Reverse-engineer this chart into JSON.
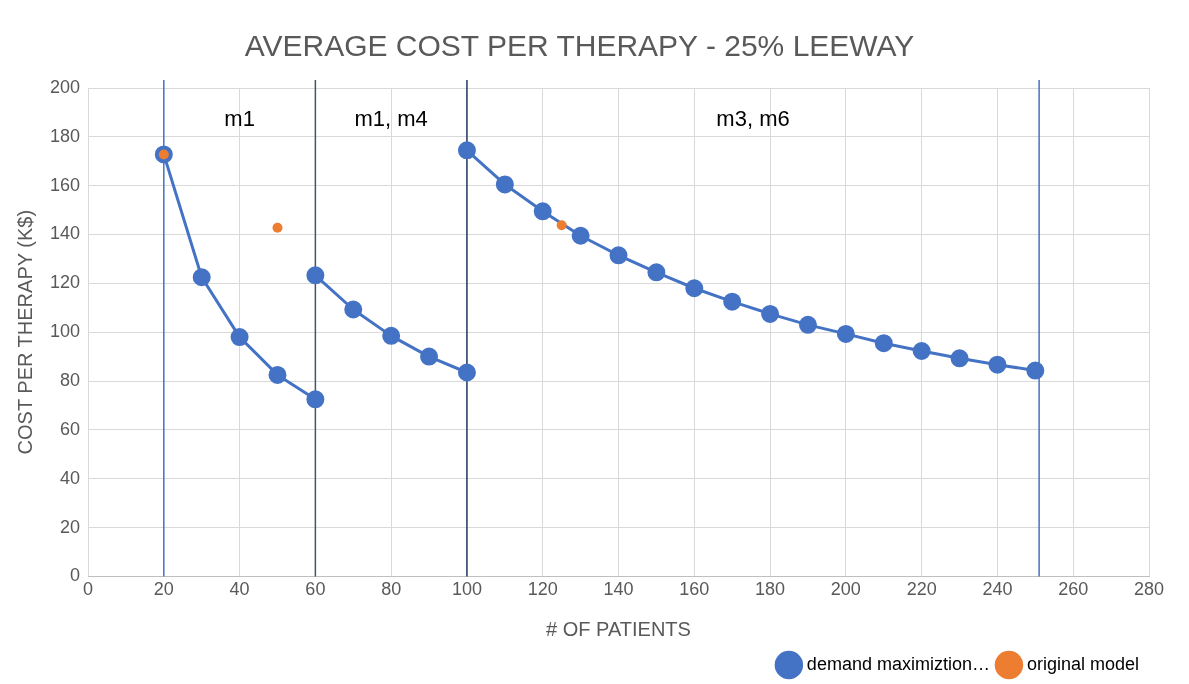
{
  "chart_data": {
    "type": "line",
    "title": "AVERAGE COST PER THERAPY - 25% LEEWAY",
    "xlabel": "# OF PATIENTS",
    "ylabel": "COST PER THERAPY (K$)",
    "xlim": [
      0,
      280
    ],
    "xticks": [
      0,
      20,
      40,
      60,
      80,
      100,
      120,
      140,
      160,
      180,
      200,
      220,
      240,
      260,
      280
    ],
    "ylim": [
      0,
      200
    ],
    "yticks": [
      0,
      20,
      40,
      60,
      80,
      100,
      120,
      140,
      160,
      180,
      200
    ],
    "grid": true,
    "legend": "bottom right",
    "marker": "circle",
    "line_style": "solid",
    "series": [
      {
        "name": "demand maximiztion…",
        "color": "#4472c4",
        "x": [
          20,
          30,
          40,
          50,
          60
        ],
        "values": [
          172.8,
          122.5,
          98,
          82.5,
          72.5
        ]
      },
      {
        "color": "#4472c4",
        "x": [
          60,
          70,
          80,
          90,
          100
        ],
        "values": [
          123.3,
          109.3,
          98.5,
          90,
          83.5
        ]
      },
      {
        "color": "#4472c4",
        "x": [
          100,
          110,
          120,
          130,
          140,
          150,
          160,
          170,
          180,
          190,
          200,
          210,
          220,
          230,
          240,
          250
        ],
        "values": [
          174.5,
          160.5,
          149.5,
          139.5,
          131.5,
          124.5,
          118,
          112.5,
          107.5,
          103,
          99.3,
          95.5,
          92.3,
          89.3,
          86.7,
          84.3
        ]
      },
      {
        "name": "original model",
        "color": "#ed7d31",
        "type": "scatter",
        "x": [
          20,
          50,
          125
        ],
        "values": [
          172.8,
          142.8,
          143.8
        ]
      }
    ],
    "ref_lines": [
      {
        "axis": "x",
        "value": 20,
        "color": "#4472c4"
      },
      {
        "axis": "x",
        "value": 60,
        "color": "#44546a"
      },
      {
        "axis": "x",
        "value": 100,
        "color": "#203864"
      },
      {
        "axis": "x",
        "value": 251,
        "color": "#4472c4"
      }
    ],
    "annotations": [
      "m1",
      "m1, m4",
      "m3, m6"
    ]
  }
}
